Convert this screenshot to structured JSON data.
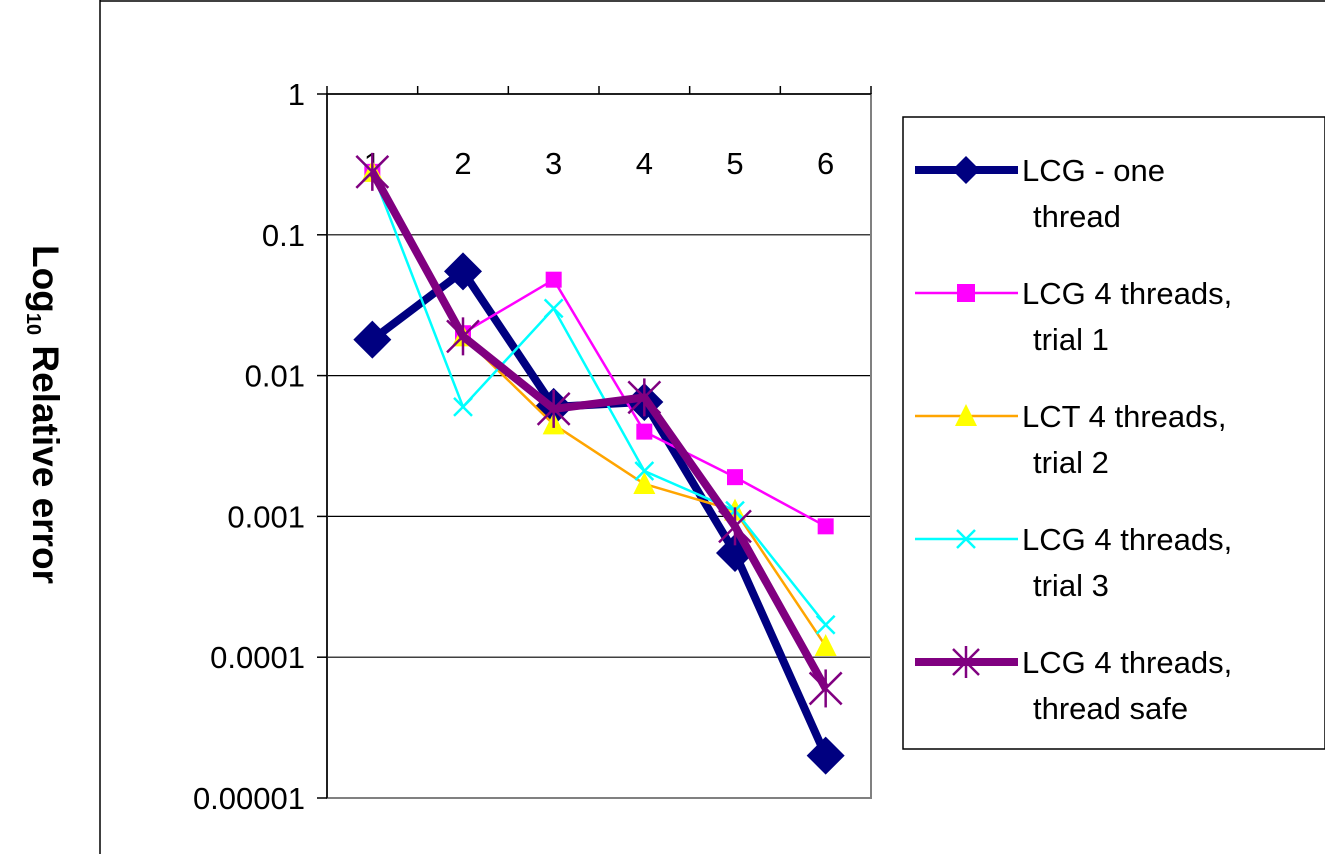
{
  "chart_data": {
    "type": "line",
    "title": "",
    "xlabel": "",
    "ylabel_main": "Log",
    "ylabel_sub": "10",
    "ylabel_rest": " Relative error",
    "yscale": "log",
    "ylim": [
      1e-05,
      1
    ],
    "y_ticks": [
      "1",
      "0.1",
      "0.01",
      "0.001",
      "0.0001",
      "0.00001"
    ],
    "y_tick_values": [
      1,
      0.1,
      0.01,
      0.001,
      0.0001,
      1e-05
    ],
    "categories": [
      "1",
      "2",
      "3",
      "4",
      "5",
      "6"
    ],
    "x_tick_position": "top",
    "grid": "horizontal major",
    "legend_position": "right",
    "series": [
      {
        "name": "LCG - one thread",
        "legend_lines": [
          "LCG - one",
          "thread"
        ],
        "color": "#000080",
        "marker": "diamond",
        "weight": "thick",
        "values": [
          0.018,
          0.055,
          0.006,
          0.0065,
          0.00055,
          2e-05
        ]
      },
      {
        "name": "LCG 4 threads, trial 1",
        "legend_lines": [
          "LCG 4 threads,",
          "trial 1"
        ],
        "color": "#FF00FF",
        "marker": "square",
        "weight": "thin",
        "values": [
          0.28,
          0.02,
          0.048,
          0.004,
          0.0019,
          0.00085
        ]
      },
      {
        "name": "LCT 4 threads, trial 2",
        "legend_lines": [
          "LCT 4 threads,",
          "trial 2"
        ],
        "color": "#FFA500",
        "marker_fill": "#FFFF00",
        "marker": "triangle",
        "weight": "thin",
        "values": [
          0.28,
          0.019,
          0.0045,
          0.0017,
          0.0011,
          0.00012
        ]
      },
      {
        "name": "LCG 4 threads, trial 3",
        "legend_lines": [
          "LCG 4 threads,",
          "trial 3"
        ],
        "color": "#00FFFF",
        "marker": "x",
        "weight": "thin",
        "values": [
          0.28,
          0.006,
          0.03,
          0.0021,
          0.0011,
          0.00017
        ]
      },
      {
        "name": "LCG 4 threads, thread safe",
        "legend_lines": [
          "LCG 4 threads,",
          "thread safe"
        ],
        "color": "#800080",
        "marker": "star",
        "weight": "thick",
        "values": [
          0.28,
          0.019,
          0.0058,
          0.007,
          0.00085,
          6e-05
        ]
      }
    ]
  }
}
